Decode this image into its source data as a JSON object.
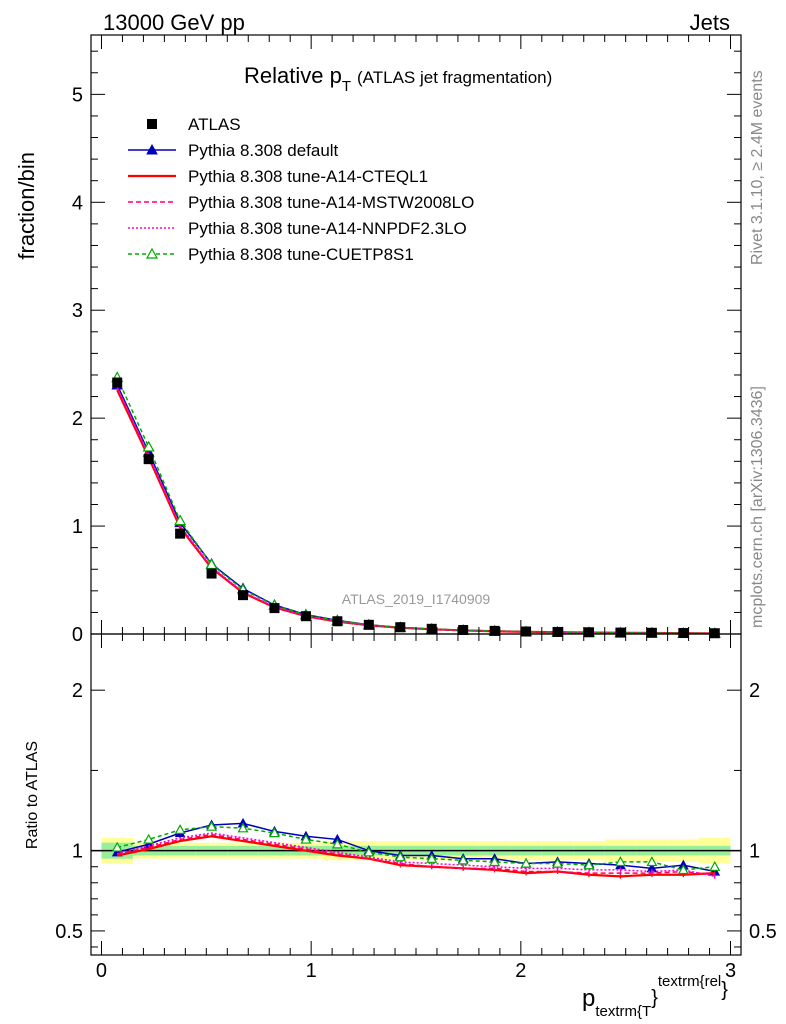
{
  "header": {
    "left": "13000 GeV pp",
    "right": "Jets"
  },
  "side_text": {
    "top": "Rivet 3.1.10, ≥ 2.4M events",
    "bottom": "mcplots.cern.ch [arXiv:1306.3436]"
  },
  "watermark": "ATLAS_2019_I1740909",
  "chart_data": {
    "type": "line",
    "title": {
      "main": "Relative p",
      "sub": "T",
      "paren": "(ATLAS jet fragmentation)"
    },
    "ylabel": "fraction/bin",
    "ratio_ylabel": "Ratio to ATLAS",
    "xlabel": {
      "base": "p",
      "sub": "textrm{T",
      "sup": "textrm{rel",
      "close_sub": "}",
      "close_sup": "}"
    },
    "xlim": [
      -0.05,
      3.05
    ],
    "ylim": [
      0,
      5.55
    ],
    "ratio_ylim": [
      0.35,
      2.35
    ],
    "x_ticks": [
      {
        "v": 0,
        "label": "0"
      },
      {
        "v": 1,
        "label": "1"
      },
      {
        "v": 2,
        "label": "2"
      },
      {
        "v": 3,
        "label": "3"
      }
    ],
    "y_ticks": [
      {
        "v": 0,
        "label": "0"
      },
      {
        "v": 1,
        "label": "1"
      },
      {
        "v": 2,
        "label": "2"
      },
      {
        "v": 3,
        "label": "3"
      },
      {
        "v": 4,
        "label": "4"
      },
      {
        "v": 5,
        "label": "5"
      }
    ],
    "ratio_ticks": [
      {
        "v": 0.5,
        "label": "0.5"
      },
      {
        "v": 1,
        "label": "1"
      },
      {
        "v": 2,
        "label": "2"
      }
    ],
    "x": [
      0.075,
      0.225,
      0.375,
      0.525,
      0.675,
      0.825,
      0.975,
      1.125,
      1.275,
      1.425,
      1.575,
      1.725,
      1.875,
      2.025,
      2.175,
      2.325,
      2.475,
      2.625,
      2.775,
      2.925
    ],
    "data": {
      "name": "ATLAS",
      "values": [
        2.33,
        1.62,
        0.93,
        0.56,
        0.36,
        0.24,
        0.165,
        0.118,
        0.085,
        0.063,
        0.048,
        0.037,
        0.029,
        0.023,
        0.019,
        0.016,
        0.013,
        0.011,
        0.009,
        0.007
      ]
    },
    "band_err": [
      0.05,
      0.03,
      0.03,
      0.03,
      0.03,
      0.03,
      0.03,
      0.03,
      0.03,
      0.03,
      0.03,
      0.03,
      0.03,
      0.03,
      0.03,
      0.03,
      0.03,
      0.03,
      0.03,
      0.03
    ],
    "band_err_total": [
      0.08,
      0.05,
      0.05,
      0.05,
      0.05,
      0.05,
      0.05,
      0.06,
      0.06,
      0.06,
      0.06,
      0.06,
      0.06,
      0.06,
      0.06,
      0.06,
      0.07,
      0.07,
      0.07,
      0.08
    ],
    "series": [
      {
        "name": "Pythia 8.308 default",
        "color": "#0000bb",
        "dash": "",
        "marker": "triangle",
        "ratio": [
          0.99,
          1.04,
          1.11,
          1.16,
          1.17,
          1.12,
          1.09,
          1.07,
          1.0,
          0.97,
          0.97,
          0.95,
          0.95,
          0.92,
          0.93,
          0.92,
          0.91,
          0.89,
          0.91,
          0.87
        ]
      },
      {
        "name": "Pythia 8.308 tune-A14-CTEQL1",
        "color": "#ff0000",
        "dash": "",
        "marker": "none",
        "ratio": [
          0.97,
          1.01,
          1.06,
          1.09,
          1.06,
          1.03,
          1.0,
          0.97,
          0.95,
          0.91,
          0.9,
          0.89,
          0.88,
          0.86,
          0.87,
          0.85,
          0.84,
          0.85,
          0.85,
          0.86
        ]
      },
      {
        "name": "Pythia 8.308 tune-A14-MSTW2008LO",
        "color": "#ff0066",
        "dash": "5,3",
        "marker": "none",
        "ratio": [
          0.98,
          1.02,
          1.07,
          1.1,
          1.07,
          1.04,
          1.01,
          0.98,
          0.95,
          0.92,
          0.9,
          0.89,
          0.89,
          0.87,
          0.87,
          0.86,
          0.86,
          0.86,
          0.87,
          0.85
        ]
      },
      {
        "name": "Pythia 8.308 tune-A14-NNPDF2.3LO",
        "color": "#ff00cc",
        "dash": "2,2",
        "marker": "none",
        "ratio": [
          0.98,
          1.03,
          1.08,
          1.11,
          1.08,
          1.05,
          1.02,
          0.99,
          0.96,
          0.93,
          0.92,
          0.91,
          0.9,
          0.89,
          0.89,
          0.88,
          0.88,
          0.87,
          0.88,
          0.84
        ]
      },
      {
        "name": "Pythia 8.308 tune-CUETP8S1",
        "color": "#00aa00",
        "dash": "4,3",
        "marker": "open-triangle",
        "ratio": [
          1.02,
          1.07,
          1.13,
          1.15,
          1.14,
          1.11,
          1.07,
          1.04,
          0.99,
          0.96,
          0.95,
          0.94,
          0.93,
          0.92,
          0.92,
          0.91,
          0.93,
          0.93,
          0.88,
          0.9
        ]
      }
    ]
  }
}
